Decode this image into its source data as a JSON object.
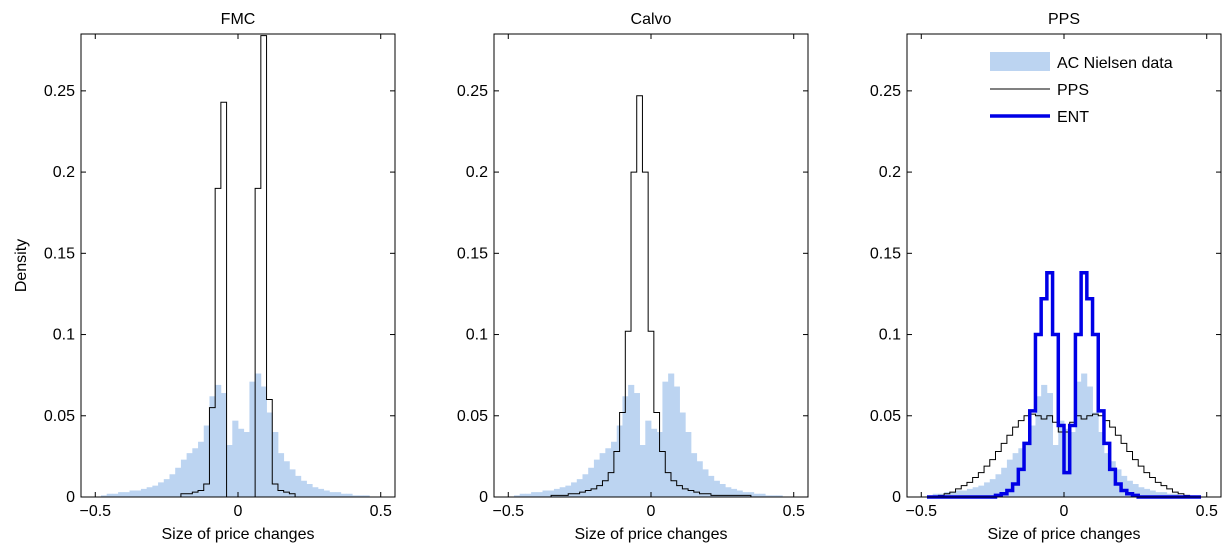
{
  "colors": {
    "data_fill": "#bcd4f1",
    "model_line": "#000000",
    "ent_line": "#0000e6"
  },
  "chart_data": [
    {
      "type": "bar",
      "title": "FMC",
      "xlabel": "Size of price changes",
      "ylabel": "Density",
      "xlim": [
        -0.55,
        0.55
      ],
      "ylim": [
        0,
        0.285
      ],
      "xticks": [
        -0.5,
        0,
        0.5
      ],
      "xtick_labels": [
        "−0.5",
        "0",
        "0.5"
      ],
      "yticks": [
        0,
        0.05,
        0.1,
        0.15,
        0.2,
        0.25
      ],
      "ytick_labels": [
        "0",
        "0.05",
        "0.1",
        "0.15",
        "0.2",
        "0.25"
      ],
      "grid": false,
      "data_hist": {
        "name": "AC Nielsen data",
        "bin_left": -0.5,
        "bin_width": 0.02,
        "values": [
          0.0,
          0.001,
          0.002,
          0.002,
          0.003,
          0.003,
          0.004,
          0.004,
          0.005,
          0.006,
          0.007,
          0.009,
          0.011,
          0.014,
          0.018,
          0.023,
          0.027,
          0.03,
          0.034,
          0.044,
          0.062,
          0.069,
          0.064,
          0.032,
          0.047,
          0.042,
          0.04,
          0.071,
          0.076,
          0.068,
          0.052,
          0.04,
          0.027,
          0.022,
          0.017,
          0.013,
          0.01,
          0.008,
          0.006,
          0.005,
          0.004,
          0.003,
          0.003,
          0.002,
          0.002,
          0.001,
          0.001,
          0.001,
          0.0,
          0.0
        ]
      },
      "model_lines": [
        {
          "name": "FMC",
          "style": "thin",
          "bin_left": -0.2,
          "bin_width": 0.02,
          "values": [
            0.002,
            0.002,
            0.003,
            0.004,
            0.008,
            0.055,
            0.19,
            0.243,
            0.0,
            0.0,
            0.0,
            0.0,
            0.0,
            0.19,
            0.284,
            0.06,
            0.008,
            0.004,
            0.003,
            0.002
          ]
        }
      ]
    },
    {
      "type": "bar",
      "title": "Calvo",
      "xlabel": "Size of price changes",
      "ylabel": "",
      "xlim": [
        -0.55,
        0.55
      ],
      "ylim": [
        0,
        0.285
      ],
      "xticks": [
        -0.5,
        0,
        0.5
      ],
      "xtick_labels": [
        "−0.5",
        "0",
        "0.5"
      ],
      "yticks": [
        0,
        0.05,
        0.1,
        0.15,
        0.2,
        0.25
      ],
      "ytick_labels": [
        "0",
        "0.05",
        "0.1",
        "0.15",
        "0.2",
        "0.25"
      ],
      "grid": false,
      "data_hist": {
        "name": "AC Nielsen data",
        "bin_left": -0.5,
        "bin_width": 0.02,
        "values": [
          0.0,
          0.001,
          0.002,
          0.002,
          0.003,
          0.003,
          0.004,
          0.004,
          0.005,
          0.006,
          0.007,
          0.009,
          0.011,
          0.014,
          0.018,
          0.023,
          0.027,
          0.03,
          0.034,
          0.044,
          0.062,
          0.069,
          0.064,
          0.032,
          0.047,
          0.042,
          0.04,
          0.071,
          0.076,
          0.068,
          0.052,
          0.04,
          0.027,
          0.022,
          0.017,
          0.013,
          0.01,
          0.008,
          0.006,
          0.005,
          0.004,
          0.003,
          0.003,
          0.002,
          0.002,
          0.001,
          0.001,
          0.001,
          0.0,
          0.0
        ]
      },
      "model_lines": [
        {
          "name": "Calvo",
          "style": "thin",
          "bin_left": -0.35,
          "bin_width": 0.02,
          "values": [
            0.001,
            0.001,
            0.001,
            0.002,
            0.002,
            0.003,
            0.004,
            0.005,
            0.007,
            0.01,
            0.015,
            0.028,
            0.052,
            0.102,
            0.2,
            0.247,
            0.2,
            0.102,
            0.052,
            0.028,
            0.015,
            0.01,
            0.007,
            0.005,
            0.004,
            0.003,
            0.002,
            0.002,
            0.001,
            0.001,
            0.001,
            0.001,
            0.001,
            0.001,
            0.001
          ]
        }
      ]
    },
    {
      "type": "bar",
      "title": "PPS",
      "xlabel": "Size of price changes",
      "ylabel": "",
      "xlim": [
        -0.55,
        0.55
      ],
      "ylim": [
        0,
        0.285
      ],
      "xticks": [
        -0.5,
        0,
        0.5
      ],
      "xtick_labels": [
        "−0.5",
        "0",
        "0.5"
      ],
      "yticks": [
        0,
        0.05,
        0.1,
        0.15,
        0.2,
        0.25
      ],
      "ytick_labels": [
        "0",
        "0.05",
        "0.1",
        "0.15",
        "0.2",
        "0.25"
      ],
      "grid": false,
      "legend": {
        "placement": "top-right",
        "entries": [
          "AC Nielsen data",
          "PPS",
          "ENT"
        ]
      },
      "data_hist": {
        "name": "AC Nielsen data",
        "bin_left": -0.5,
        "bin_width": 0.02,
        "values": [
          0.0,
          0.001,
          0.002,
          0.002,
          0.003,
          0.003,
          0.004,
          0.004,
          0.005,
          0.006,
          0.007,
          0.009,
          0.011,
          0.014,
          0.018,
          0.023,
          0.027,
          0.03,
          0.034,
          0.044,
          0.062,
          0.069,
          0.064,
          0.032,
          0.047,
          0.042,
          0.04,
          0.071,
          0.076,
          0.068,
          0.052,
          0.04,
          0.027,
          0.022,
          0.017,
          0.013,
          0.01,
          0.008,
          0.006,
          0.005,
          0.004,
          0.003,
          0.003,
          0.002,
          0.002,
          0.001,
          0.001,
          0.001,
          0.0,
          0.0
        ]
      },
      "model_lines": [
        {
          "name": "PPS",
          "style": "thin",
          "bin_left": -0.44,
          "bin_width": 0.02,
          "values": [
            0.001,
            0.002,
            0.003,
            0.005,
            0.007,
            0.009,
            0.012,
            0.015,
            0.019,
            0.023,
            0.028,
            0.033,
            0.038,
            0.043,
            0.047,
            0.05,
            0.051,
            0.05,
            0.048,
            0.05,
            0.046,
            0.04,
            0.04,
            0.046,
            0.05,
            0.048,
            0.05,
            0.051,
            0.05,
            0.047,
            0.043,
            0.038,
            0.033,
            0.028,
            0.023,
            0.019,
            0.015,
            0.012,
            0.009,
            0.007,
            0.005,
            0.003,
            0.002,
            0.001
          ]
        },
        {
          "name": "ENT",
          "style": "thick",
          "bin_left": -0.48,
          "bin_width": 0.02,
          "values": [
            0.0,
            0.0,
            0.0,
            0.0,
            0.0,
            0.0,
            0.0,
            0.0,
            0.0,
            0.0,
            0.0,
            0.0,
            0.001,
            0.002,
            0.004,
            0.008,
            0.017,
            0.033,
            0.053,
            0.1,
            0.122,
            0.138,
            0.1,
            0.044,
            0.015,
            0.044,
            0.1,
            0.138,
            0.122,
            0.1,
            0.053,
            0.033,
            0.017,
            0.008,
            0.004,
            0.002,
            0.001,
            0.0,
            0.0,
            0.0,
            0.0,
            0.0,
            0.0,
            0.0,
            0.0,
            0.0,
            0.0,
            0.0
          ]
        }
      ]
    }
  ]
}
